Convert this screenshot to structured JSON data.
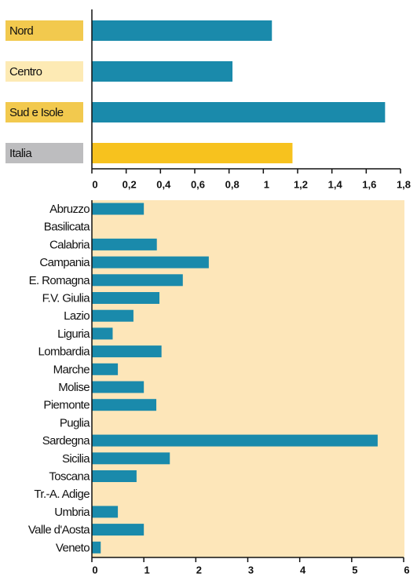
{
  "chart_data": [
    {
      "type": "bar",
      "orientation": "horizontal",
      "categories": [
        "Nord",
        "Centro",
        "Sud e Isole",
        "Italia"
      ],
      "values": [
        1.05,
        0.82,
        1.71,
        1.17
      ],
      "colors": [
        "#1a8aab",
        "#1a8aab",
        "#1a8aab",
        "#f7c21e"
      ],
      "label_colors": [
        "#f2c94e",
        "#fdeab4",
        "#f2c94e",
        "#bdbdbf"
      ],
      "xlim": [
        0,
        1.8
      ],
      "xticks": [
        0,
        {
          "value": 0.2,
          "label": "0,2"
        },
        {
          "value": 0.4,
          "label": "0,4"
        },
        {
          "value": 0.6,
          "label": "0,6"
        },
        {
          "value": 0.8,
          "label": "0,8"
        },
        1,
        {
          "value": 1.2,
          "label": "1,2"
        },
        {
          "value": 1.4,
          "label": "1,4"
        },
        {
          "value": 1.6,
          "label": "1,6"
        },
        {
          "value": 1.8,
          "label": "1,8"
        }
      ]
    },
    {
      "type": "bar",
      "orientation": "horizontal",
      "categories": [
        "Abruzzo",
        "Basilicata",
        "Calabria",
        "Campania",
        "E. Romagna",
        "F.V. Giulia",
        "Lazio",
        "Liguria",
        "Lombardia",
        "Marche",
        "Molise",
        "Piemonte",
        "Puglia",
        "Sardegna",
        "Sicilia",
        "Toscana",
        "Tr.-A. Adige",
        "Umbria",
        "Valle d'Aosta",
        "Veneto"
      ],
      "values": [
        1.0,
        0,
        1.25,
        2.25,
        1.75,
        1.3,
        0.8,
        0.4,
        1.34,
        0.5,
        1.0,
        1.24,
        0,
        5.5,
        1.5,
        0.86,
        0,
        0.5,
        1.0,
        0.17
      ],
      "color": "#1a8aab",
      "background": "#fde6b9",
      "xlim": [
        0,
        6
      ],
      "xticks": [
        0,
        1,
        2,
        3,
        4,
        5,
        6
      ]
    }
  ]
}
